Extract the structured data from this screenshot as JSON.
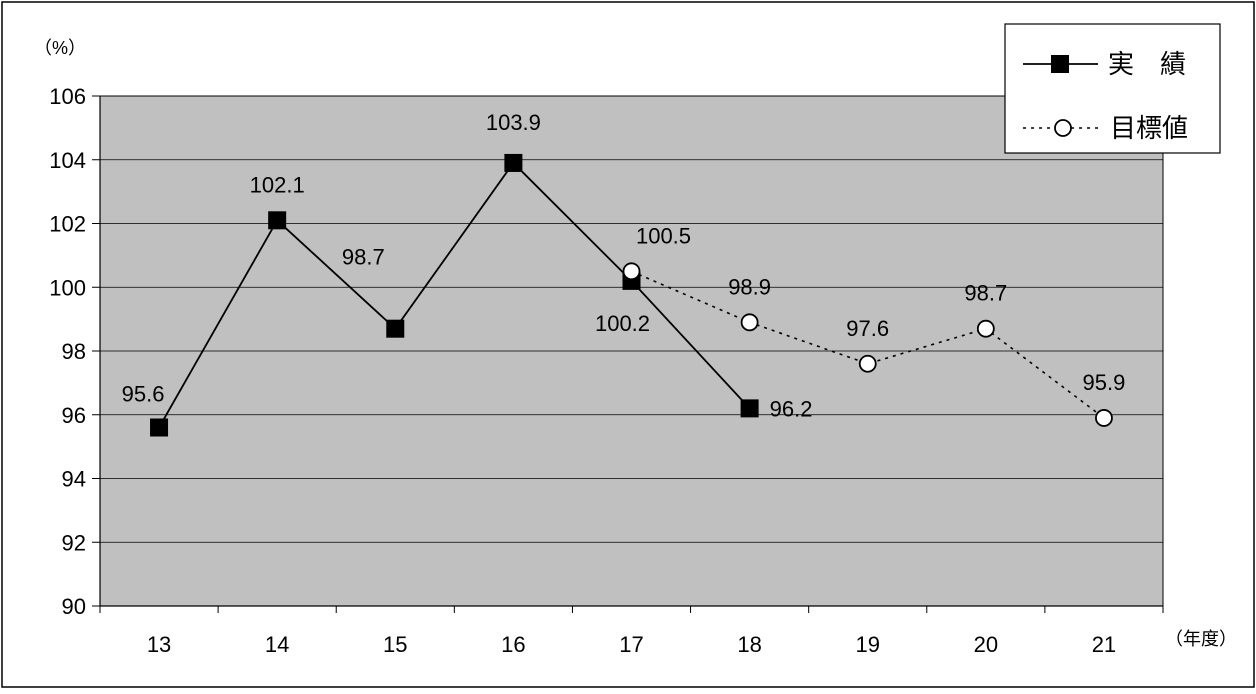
{
  "chart_data": {
    "type": "line",
    "categories": [
      "13",
      "14",
      "15",
      "16",
      "17",
      "18",
      "19",
      "20",
      "21"
    ],
    "series": [
      {
        "name": "実　績",
        "marker": "filled-square",
        "line": "solid",
        "values": [
          95.6,
          102.1,
          98.7,
          103.9,
          100.2,
          96.2,
          null,
          null,
          null
        ],
        "labels": [
          "95.6",
          "102.1",
          "98.7",
          "103.9",
          "100.2",
          "96.2",
          "",
          "",
          ""
        ]
      },
      {
        "name": "目標値",
        "marker": "open-circle",
        "line": "dotted",
        "values": [
          null,
          null,
          null,
          null,
          100.5,
          98.9,
          97.6,
          98.7,
          95.9
        ],
        "labels": [
          "",
          "",
          "",
          "",
          "100.5",
          "98.9",
          "97.6",
          "98.7",
          "95.9"
        ]
      }
    ],
    "ylim": [
      90,
      106
    ],
    "yticks": [
      "90",
      "92",
      "94",
      "96",
      "98",
      "100",
      "102",
      "104",
      "106"
    ],
    "y_unit": "（%）",
    "x_unit": "（年度）",
    "grid": true,
    "legend_position": "top-right",
    "colors": {
      "plot_bg": "#c0c0c0",
      "line": "#000000",
      "frame": "#000000",
      "open_marker_fill": "#ffffff"
    }
  }
}
